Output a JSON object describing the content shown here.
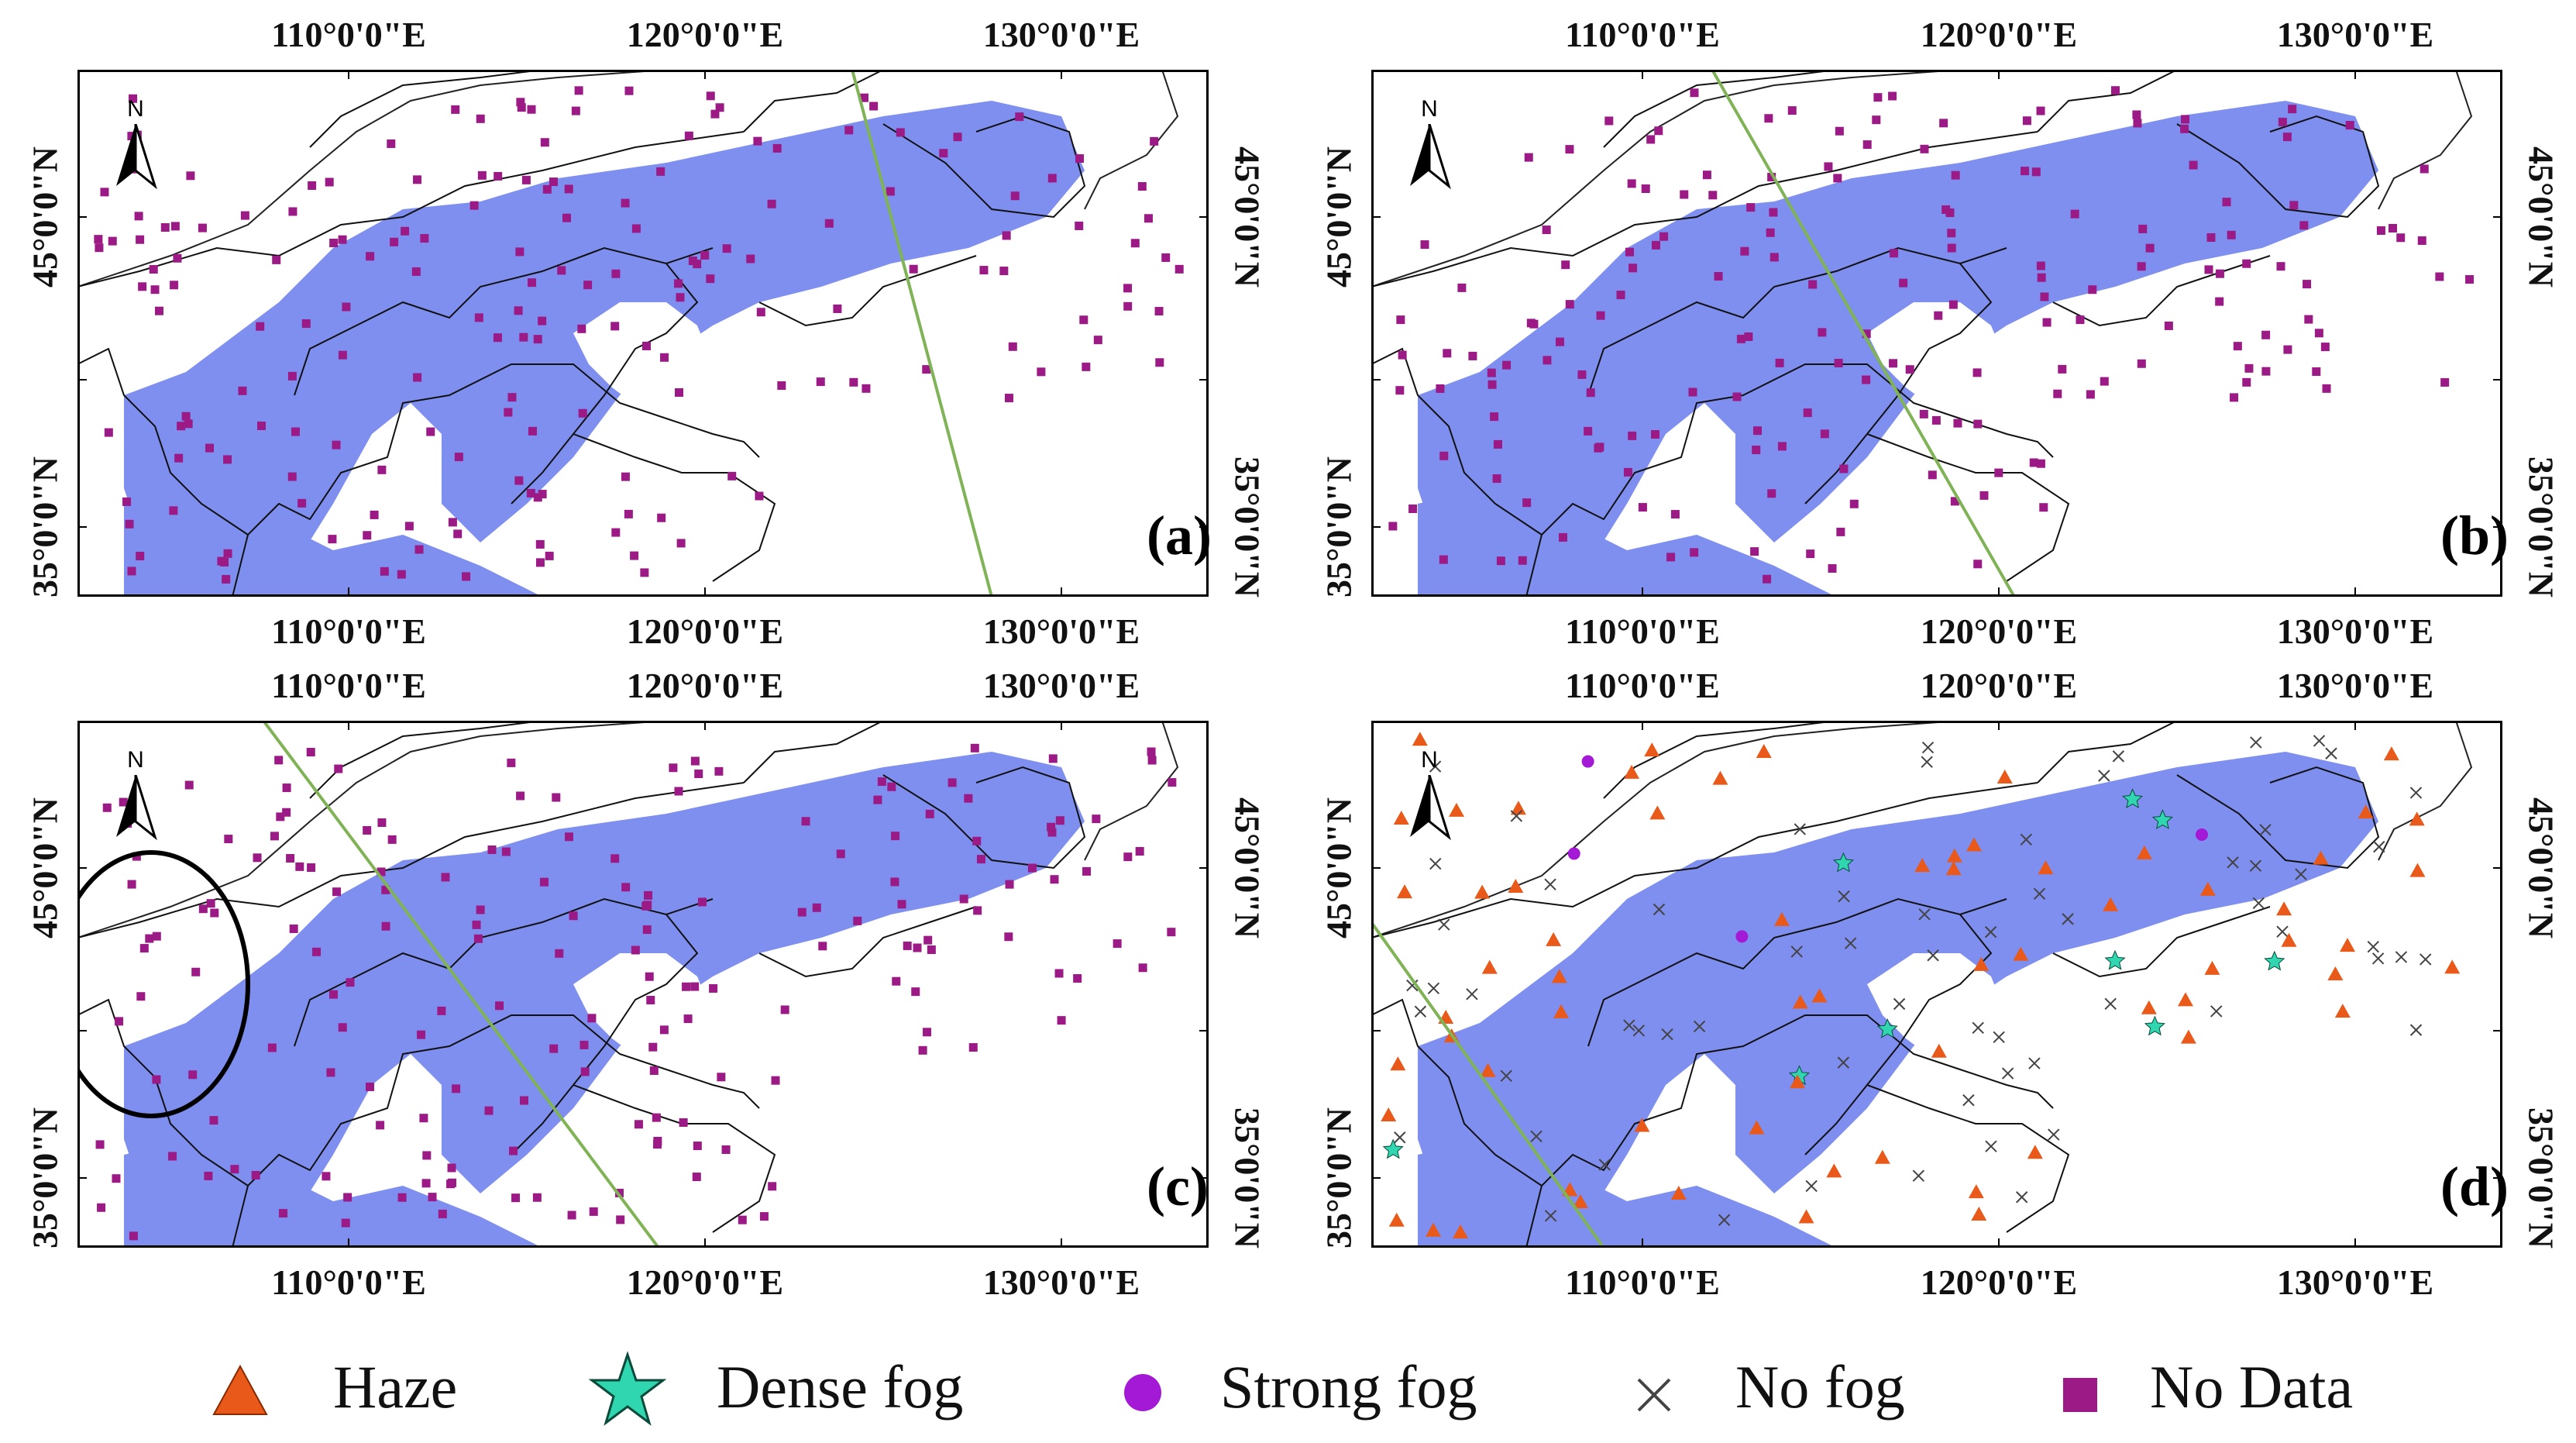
{
  "figure": {
    "panels": [
      {
        "id": "a",
        "label": "(a)",
        "top_lon": [
          "110°0'0\"E",
          "120°0'0\"E",
          "130°0'0\"E"
        ],
        "bottom_lon": [
          "110°0'0\"E",
          "120°0'0\"E",
          "130°0'0\"E"
        ],
        "left_lat": [
          "45°0'0\"N",
          "35°0'0\"N"
        ],
        "right_lat": [
          "45°0'0\"N",
          "35°0'0\"N"
        ],
        "north": "N"
      },
      {
        "id": "b",
        "label": "(b)",
        "top_lon": [
          "110°0'0\"E",
          "120°0'0\"E",
          "130°0'0\"E"
        ],
        "bottom_lon": [
          "110°0'0\"E",
          "120°0'0\"E",
          "130°0'0\"E"
        ],
        "left_lat": [
          "45°0'0\"N",
          "35°0'0\"N"
        ],
        "right_lat": [
          "45°0'0\"N",
          "35°0'0\"N"
        ],
        "north": "N"
      },
      {
        "id": "c",
        "label": "(c)",
        "top_lon": [
          "110°0'0\"E",
          "120°0'0\"E",
          "130°0'0\"E"
        ],
        "bottom_lon": [
          "110°0'0\"E",
          "120°0'0\"E",
          "130°0'0\"E"
        ],
        "left_lat": [
          "45°0'0\"N",
          "35°0'0\"N"
        ],
        "right_lat": [
          "45°0'0\"N",
          "35°0'0\"N"
        ],
        "north": "N"
      },
      {
        "id": "d",
        "label": "(d)",
        "top_lon": [
          "110°0'0\"E",
          "120°0'0\"E",
          "130°0'0\"E"
        ],
        "bottom_lon": [
          "110°0'0\"E",
          "120°0'0\"E",
          "130°0'0\"E"
        ],
        "left_lat": [
          "45°0'0\"N",
          "35°0'0\"N"
        ],
        "right_lat": [
          "45°0'0\"N",
          "35°0'0\"N"
        ],
        "north": "N"
      }
    ]
  },
  "legend": {
    "items": [
      {
        "label": "Haze",
        "symbol": "triangle",
        "color": "#e8591a"
      },
      {
        "label": "Dense fog",
        "symbol": "star",
        "color": "#2fd6b0"
      },
      {
        "label": "Strong fog",
        "symbol": "circle",
        "color": "#a319d6"
      },
      {
        "label": "No fog",
        "symbol": "cross",
        "color": "#444444"
      },
      {
        "label": "No Data",
        "symbol": "square",
        "color": "#9b1a85"
      }
    ]
  },
  "colors": {
    "fog": "#7f8ff0",
    "satellite_track": "#7fb356",
    "boundary": "#111111",
    "nodata": "#9b1a85",
    "haze": "#e8591a",
    "dense": "#2fd6b0",
    "strong": "#a319d6",
    "nofog": "#444444"
  }
}
